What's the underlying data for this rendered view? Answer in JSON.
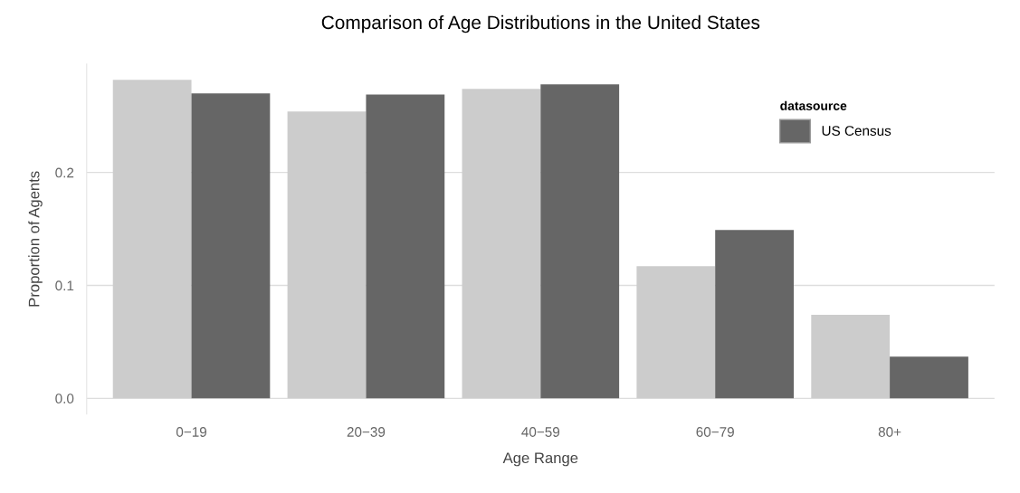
{
  "chart_data": {
    "type": "bar",
    "title": "Comparison of Age Distributions in the United States",
    "xlabel": "Age Range",
    "ylabel": "Proportion of Agents",
    "legend_title": "datasource",
    "categories": [
      "0−19",
      "20−39",
      "40−59",
      "60−79",
      "80+"
    ],
    "series": [
      {
        "color": "#cccccc",
        "values": [
          0.282,
          0.254,
          0.274,
          0.117,
          0.074
        ]
      },
      {
        "name": "US Census",
        "color": "#666666",
        "values": [
          0.27,
          0.269,
          0.278,
          0.149,
          0.037
        ]
      }
    ],
    "ylim": [
      -0.014,
      0.296
    ],
    "yticks": [
      {
        "value": 0,
        "label": "0.0"
      },
      0.1,
      0.2
    ],
    "grid": "y",
    "legend": "top right"
  }
}
